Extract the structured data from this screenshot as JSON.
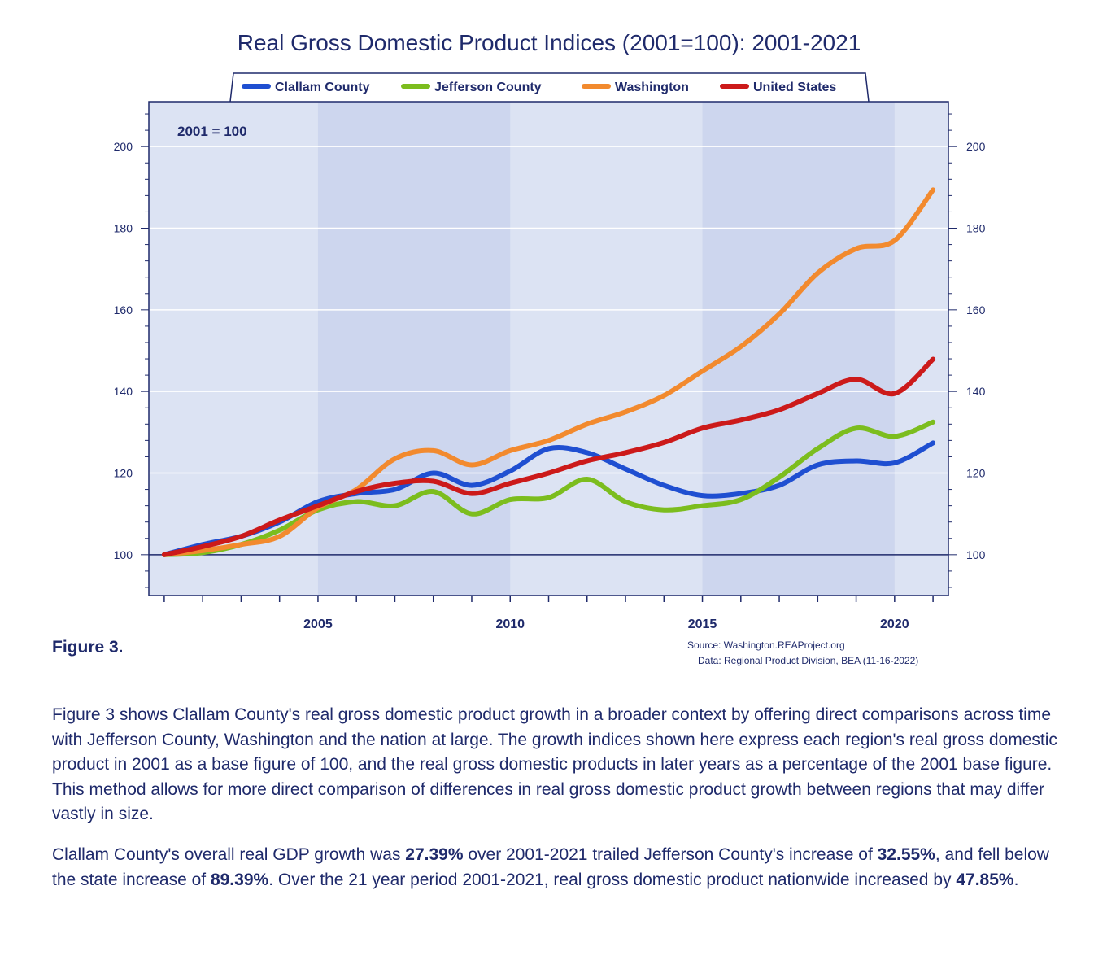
{
  "chart_data": {
    "type": "line",
    "title": "Real Gross Domestic Product Indices (2001=100): 2001-2021",
    "annotation": "2001 = 100",
    "x": [
      2001,
      2002,
      2003,
      2004,
      2005,
      2006,
      2007,
      2008,
      2009,
      2010,
      2011,
      2012,
      2013,
      2014,
      2015,
      2016,
      2017,
      2018,
      2019,
      2020,
      2021
    ],
    "x_tick_labels": [
      "2005",
      "2010",
      "2015",
      "2020"
    ],
    "x_ticks": [
      2005,
      2010,
      2015,
      2020
    ],
    "y_ticks": [
      100,
      120,
      140,
      160,
      180,
      200
    ],
    "y_tick_labels": [
      "100",
      "120",
      "140",
      "160",
      "180",
      "200"
    ],
    "xlim": [
      2000.6,
      2021.4
    ],
    "ylim": [
      90,
      211
    ],
    "reference_line": 100,
    "shaded_bands": [
      [
        2005,
        2010
      ],
      [
        2015,
        2020
      ]
    ],
    "grid": true,
    "legend_position": "top",
    "series": [
      {
        "name": "Clallam County",
        "color": "#1f4fd1",
        "values": [
          100,
          102.5,
          104.5,
          108,
          113,
          115,
          116,
          120,
          117,
          120.5,
          126,
          125,
          121,
          117,
          114.5,
          115,
          117,
          122,
          123,
          122.5,
          127.4
        ]
      },
      {
        "name": "Jefferson County",
        "color": "#7cbd1e",
        "values": [
          100,
          100.5,
          102.5,
          106,
          111,
          113,
          112,
          115.5,
          110,
          113.5,
          114,
          118.5,
          113,
          111,
          112,
          113.5,
          119,
          126,
          131,
          129,
          132.5
        ]
      },
      {
        "name": "Washington",
        "color": "#f28a2e",
        "values": [
          100,
          101,
          102.5,
          104.5,
          111.5,
          116,
          123.5,
          125.5,
          122,
          125.5,
          128,
          132,
          135,
          139,
          145,
          151,
          159,
          169,
          175,
          177,
          189.4
        ]
      },
      {
        "name": "United States",
        "color": "#cc1a1a",
        "values": [
          100,
          102,
          104.5,
          108.5,
          112,
          115.5,
          117.5,
          118,
          115,
          117.5,
          120,
          123,
          125,
          127.5,
          131,
          133,
          135.5,
          139.5,
          143,
          139.5,
          147.9
        ]
      }
    ]
  },
  "source_line1": "Source: Washington.REAProject.org",
  "source_line2": "Data: Regional Product Division, BEA (11-16-2022)",
  "figure_label": "Figure 3.",
  "paragraph1": "Figure 3 shows Clallam County's real gross domestic product growth in a broader context by offering direct comparisons across time with Jefferson County, Washington and the nation at large. The growth indices shown here express each region's real gross domestic product in 2001 as a base figure of 100, and the real gross domestic products in later years as a percentage of the 2001 base figure. This method allows for more direct comparison of differences in real gross domestic product growth between regions that may differ vastly in size.",
  "paragraph2": {
    "t1": "Clallam County's overall real GDP growth was ",
    "b1": "27.39%",
    "t2": " over 2001-2021 trailed Jefferson County's increase of ",
    "b2": "32.55%",
    "t3": ", and fell below the state increase of ",
    "b3": "89.39%",
    "t4": ". Over the 21 year period 2001-2021, real gross domestic product nationwide increased by ",
    "b4": "47.85%",
    "t5": "."
  }
}
